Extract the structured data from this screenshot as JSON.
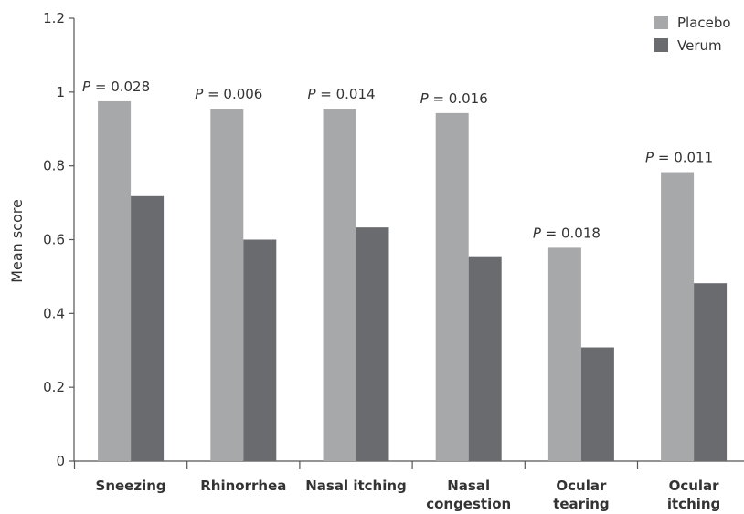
{
  "chart_data": {
    "type": "bar",
    "title": "",
    "xlabel": "",
    "ylabel": "Mean score",
    "ylim": [
      0,
      1.2
    ],
    "yticks": [
      "0",
      "0.2",
      "0.4",
      "0.6",
      "0.8",
      "1",
      "1.2"
    ],
    "categories": [
      [
        "Sneezing"
      ],
      [
        "Rhinorrhea"
      ],
      [
        "Nasal itching"
      ],
      [
        "Nasal",
        "congestion"
      ],
      [
        "Ocular",
        "tearing"
      ],
      [
        "Ocular",
        "itching"
      ]
    ],
    "series": [
      {
        "name": "Placebo",
        "color": "#a7a8aa",
        "values": [
          0.975,
          0.955,
          0.955,
          0.943,
          0.578,
          0.783
        ]
      },
      {
        "name": "Verum",
        "color": "#6a6b6e",
        "values": [
          0.718,
          0.6,
          0.633,
          0.555,
          0.308,
          0.482
        ]
      }
    ],
    "annotations": [
      {
        "prefix": "P",
        "text": " = 0.028"
      },
      {
        "prefix": "P",
        "text": " = 0.006"
      },
      {
        "prefix": "P",
        "text": " = 0.014"
      },
      {
        "prefix": "P",
        "text": " = 0.016"
      },
      {
        "prefix": "P",
        "text": " = 0.018"
      },
      {
        "prefix": "P",
        "text": " = 0.011"
      }
    ],
    "legend_position": "top-right",
    "grid": false
  }
}
